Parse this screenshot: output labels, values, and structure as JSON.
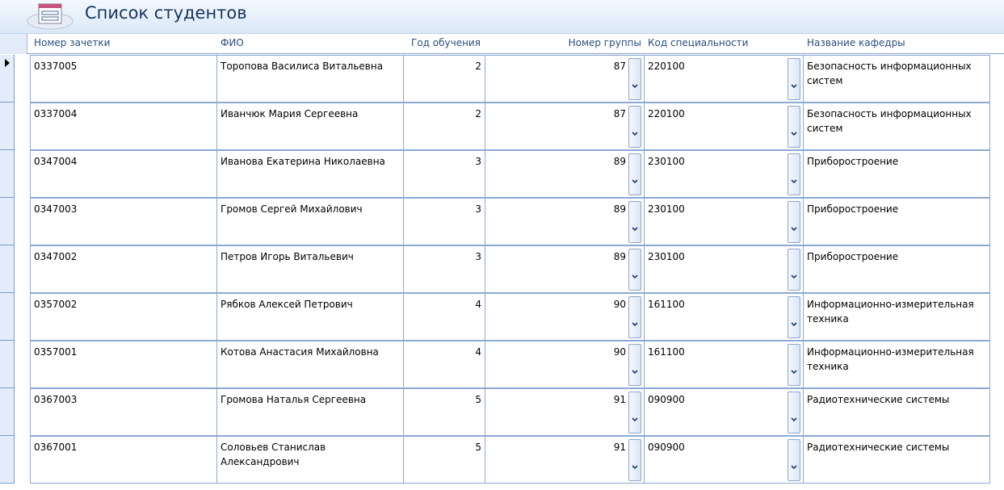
{
  "form": {
    "title": "Список студентов",
    "icon": "form-icon"
  },
  "columns": {
    "record_book": "Номер зачетки",
    "name": "ФИО",
    "year": "Год обучения",
    "group": "Номер группы",
    "specialty": "Код специальности",
    "department": "Название кафедры"
  },
  "rows": [
    {
      "record_book": "0337005",
      "name": "Торопова Василиса Витальевна",
      "year": "2",
      "group": "87",
      "specialty": "220100",
      "department": "Безопасность информационных систем"
    },
    {
      "record_book": "0337004",
      "name": "Иванчюк Мария Сергеевна",
      "year": "2",
      "group": "87",
      "specialty": "220100",
      "department": "Безопасность информационных систем"
    },
    {
      "record_book": "0347004",
      "name": "Иванова Екатерина Николаевна",
      "year": "3",
      "group": "89",
      "specialty": "230100",
      "department": "Приборостроение"
    },
    {
      "record_book": "0347003",
      "name": "Громов Сергей Михайлович",
      "year": "3",
      "group": "89",
      "specialty": "230100",
      "department": "Приборостроение"
    },
    {
      "record_book": "0347002",
      "name": "Петров Игорь Витальевич",
      "year": "3",
      "group": "89",
      "specialty": "230100",
      "department": "Приборостроение"
    },
    {
      "record_book": "0357002",
      "name": "Рябков Алексей Петрович",
      "year": "4",
      "group": "90",
      "specialty": "161100",
      "department": "Информационно-измерительная техника"
    },
    {
      "record_book": "0357001",
      "name": "Котова Анастасия Михайловна",
      "year": "4",
      "group": "90",
      "specialty": "161100",
      "department": "Информационно-измерительная техника"
    },
    {
      "record_book": "0367003",
      "name": "Громова Наталья Сергеевна",
      "year": "5",
      "group": "91",
      "specialty": "090900",
      "department": "Радиотехнические системы"
    },
    {
      "record_book": "0367001",
      "name": "Соловьев Станислав Александрович",
      "year": "5",
      "group": "91",
      "specialty": "090900",
      "department": "Радиотехнические системы"
    }
  ],
  "current_row": 1
}
